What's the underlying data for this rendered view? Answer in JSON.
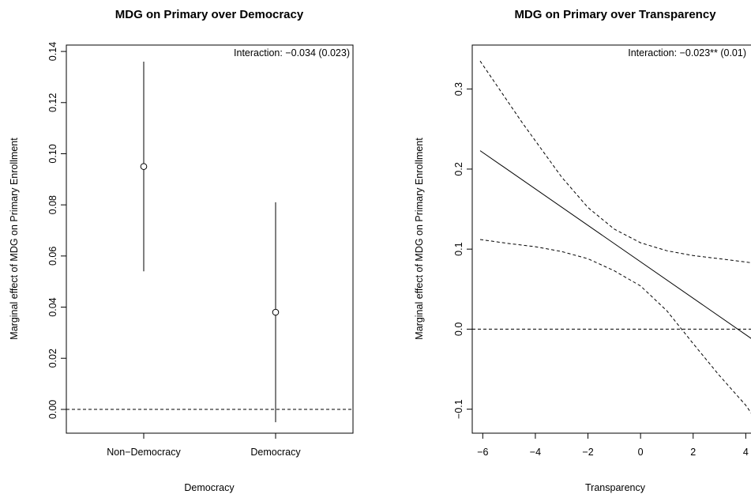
{
  "chart_data": [
    {
      "type": "scatter",
      "title": "MDG on Primary over Democracy",
      "xlabel": "Democracy",
      "ylabel": "Marginal effect of MDG on Primary Enrollment",
      "categories": [
        "Non−Democracy",
        "Democracy"
      ],
      "estimates": [
        0.095,
        0.038
      ],
      "ci_lower": [
        0.054,
        -0.005
      ],
      "ci_upper": [
        0.136,
        0.081
      ],
      "yticks": [
        "0.00",
        "0.02",
        "0.04",
        "0.06",
        "0.08",
        "0.10",
        "0.12",
        "0.14"
      ],
      "ylim": [
        -0.0093,
        0.1425
      ],
      "reference_line": 0,
      "annotation": "Interaction: −0.034 (0.023)",
      "grid": false
    },
    {
      "type": "line",
      "title": "MDG on Primary over Transparency",
      "xlabel": "Transparency",
      "ylabel": "Marginal effect of MDG on Primary Enrollment",
      "xticks": [
        "−6",
        "−4",
        "−2",
        "0",
        "2",
        "4"
      ],
      "yticks": [
        "−0.1",
        "0.0",
        "0.1",
        "0.2",
        "0.3"
      ],
      "xlim": [
        -6.4,
        4.5
      ],
      "ylim": [
        -0.13,
        0.355
      ],
      "estimate": {
        "x": [
          -6.1,
          4.4
        ],
        "y": [
          0.223,
          -0.016
        ]
      },
      "ci_upper": {
        "x": [
          -6.1,
          -4.5,
          -3,
          -2,
          -1,
          0,
          1,
          2,
          3,
          4,
          4.4
        ],
        "y": [
          0.335,
          0.258,
          0.19,
          0.152,
          0.125,
          0.108,
          0.098,
          0.092,
          0.088,
          0.084,
          0.082
        ]
      },
      "ci_lower": {
        "x": [
          -6.1,
          -5,
          -4,
          -3,
          -2,
          -1,
          0,
          1,
          2,
          3,
          4,
          4.4
        ],
        "y": [
          0.112,
          0.107,
          0.103,
          0.097,
          0.088,
          0.073,
          0.054,
          0.023,
          -0.018,
          -0.058,
          -0.095,
          -0.114
        ]
      },
      "reference_line": 0,
      "annotation": "Interaction: −0.023** (0.01)",
      "grid": false
    }
  ]
}
